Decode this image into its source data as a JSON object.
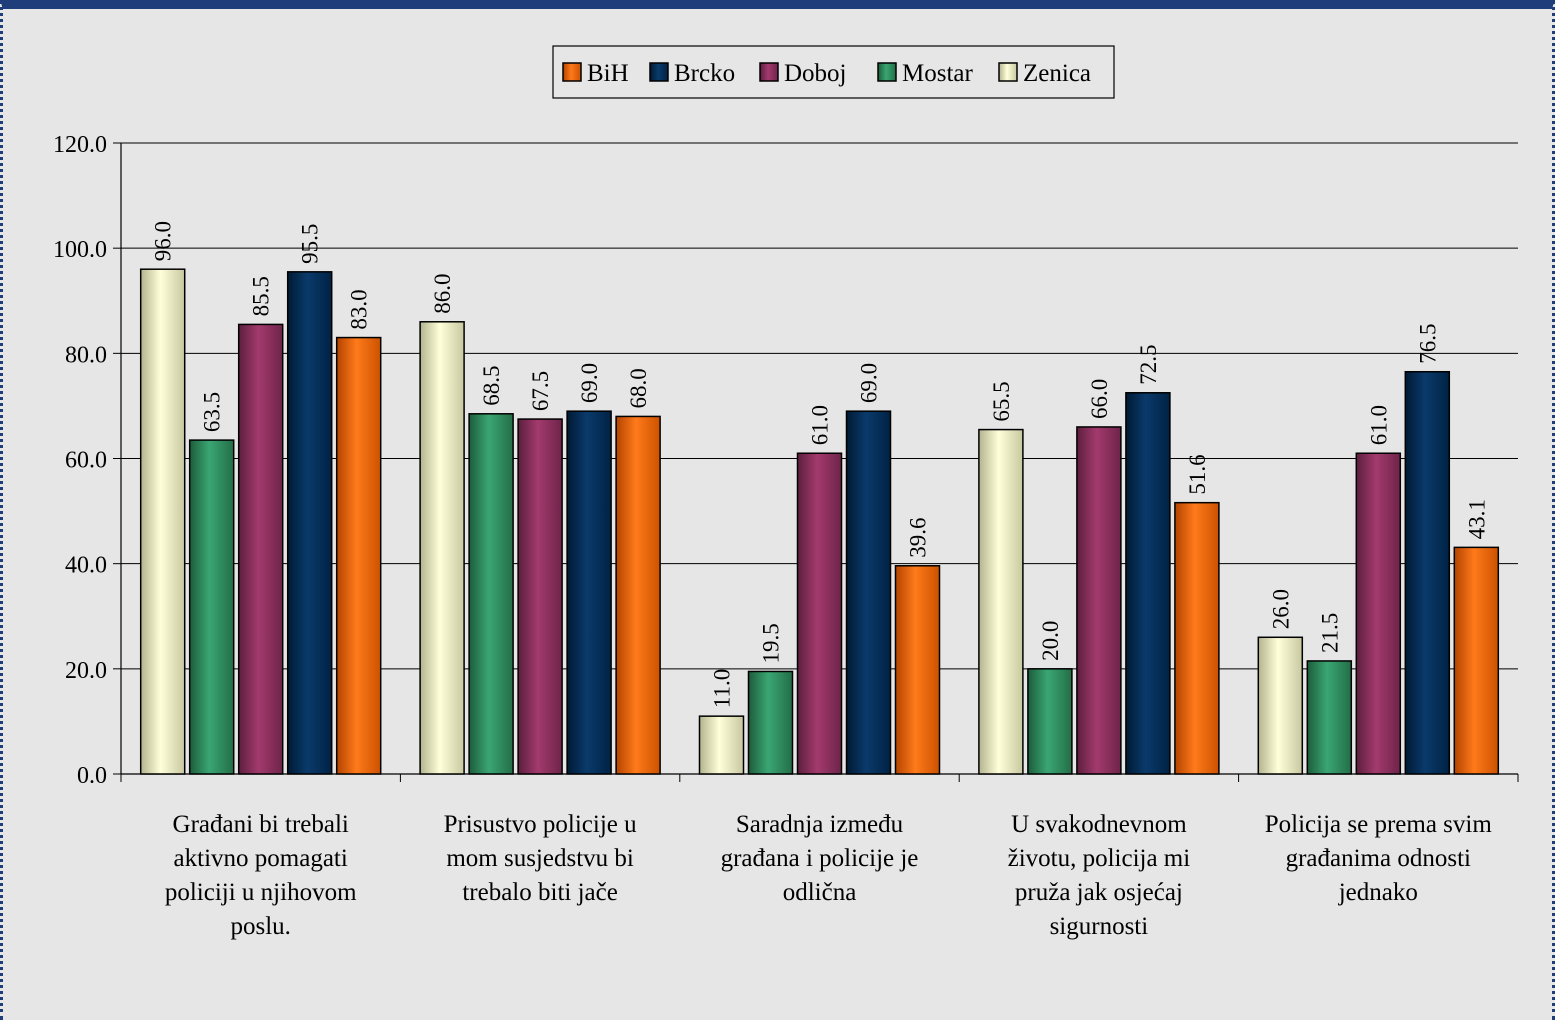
{
  "chart_data": {
    "type": "bar",
    "title": "",
    "xlabel": "",
    "ylabel": "",
    "ylim": [
      0,
      120
    ],
    "y_ticks": [
      "0.0",
      "20.0",
      "40.0",
      "60.0",
      "80.0",
      "100.0",
      "120.0"
    ],
    "grid": true,
    "legend_position": "top-center",
    "categories": [
      "Građani bi trebali aktivno pomagati policiji u njihovom poslu.",
      "Prisustvo policije u mom susjedstvu bi trebalo biti jače",
      "Saradnja između građana i policije je odlična",
      "U svakodnevnom životu, policija mi pruža jak osjećaj sigurnosti",
      "Policija se prema svim građanima odnosti jednako"
    ],
    "category_lines": [
      [
        "Građani bi trebali",
        "aktivno pomagati",
        "policiji u njihovom",
        "poslu."
      ],
      [
        "Prisustvo policije u",
        "mom susjedstvu bi",
        "trebalo biti jače"
      ],
      [
        "Saradnja između",
        "građana i policije je",
        "odlična"
      ],
      [
        "U svakodnevnom",
        "životu, policija mi",
        "pruža jak osjećaj",
        "sigurnosti"
      ],
      [
        "Policija se prema svim",
        "građanima odnosti",
        "jednako"
      ]
    ],
    "bar_order": [
      "Zenica",
      "Mostar",
      "Doboj",
      "Brcko",
      "BiH"
    ],
    "series": [
      {
        "name": "BiH",
        "color": "#ff6600",
        "values": [
          83.0,
          68.0,
          39.6,
          51.6,
          43.1
        ]
      },
      {
        "name": "Brcko",
        "color": "#003366",
        "values": [
          95.5,
          69.0,
          69.0,
          72.5,
          76.5
        ]
      },
      {
        "name": "Doboj",
        "color": "#993366",
        "values": [
          85.5,
          67.5,
          61.0,
          66.0,
          61.0
        ]
      },
      {
        "name": "Mostar",
        "color": "#339966",
        "values": [
          63.5,
          68.5,
          19.5,
          20.0,
          21.5
        ]
      },
      {
        "name": "Zenica",
        "color": "#ffffcc",
        "values": [
          96.0,
          86.0,
          11.0,
          65.5,
          26.0
        ]
      }
    ],
    "value_labels": {
      "BiH": [
        "83.0",
        "68.0",
        "39.6",
        "51.6",
        "43.1"
      ],
      "Brcko": [
        "95.5",
        "69.0",
        "69.0",
        "72.5",
        "76.5"
      ],
      "Doboj": [
        "85.5",
        "67.5",
        "61.0",
        "66.0",
        "61.0"
      ],
      "Mostar": [
        "63.5",
        "68.5",
        "19.5",
        "20.0",
        "21.5"
      ],
      "Zenica": [
        "96.0",
        "86.0",
        "11.0",
        "65.5",
        "26.0"
      ]
    }
  }
}
